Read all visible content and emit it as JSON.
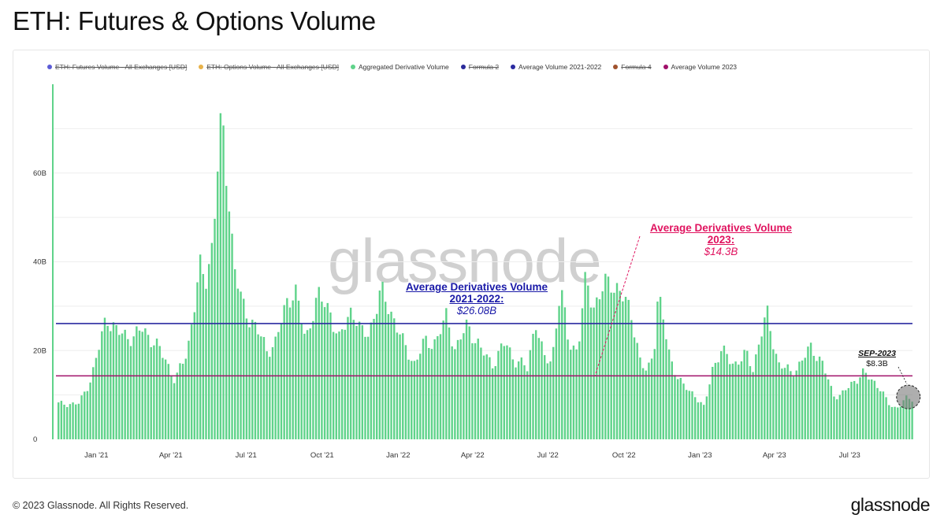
{
  "page": {
    "title": "ETH: Futures & Options Volume",
    "copyright": "© 2023 Glassnode. All Rights Reserved.",
    "brand": "glassnode",
    "watermark": "glassnode"
  },
  "legend": [
    {
      "label": "ETH: Futures Volume - All Exchanges [USD]",
      "color": "#5b5bd6",
      "hidden": true
    },
    {
      "label": "ETH: Options Volume - All Exchanges [USD]",
      "color": "#e8b24a",
      "hidden": true
    },
    {
      "label": "Aggregated Derivative Volume",
      "color": "#5fd38a",
      "hidden": false
    },
    {
      "label": "Formula 2",
      "color": "#2a2a9a",
      "hidden": true
    },
    {
      "label": "Average Volume 2021-2022",
      "color": "#2a2aa0",
      "hidden": false
    },
    {
      "label": "Formula 4",
      "color": "#a0522d",
      "hidden": true
    },
    {
      "label": "Average Volume 2023",
      "color": "#a0106a",
      "hidden": false
    }
  ],
  "annotations": {
    "avg_2122": {
      "title_line1": "Average Derivatives Volume",
      "title_line2": "2021-2022:",
      "value": "$26.08B"
    },
    "avg_2023": {
      "title_line1": "Average Derivatives Volume",
      "title_line2": "2023:",
      "value": "$14.3B"
    },
    "sep_2023": {
      "title": "SEP-2023",
      "value": "$8.3B"
    }
  },
  "chart_data": {
    "type": "bar",
    "ylim": [
      0,
      80
    ],
    "y_unit": "B USD",
    "y_ticks": [
      {
        "v": 0,
        "label": "0"
      },
      {
        "v": 20,
        "label": "20B"
      },
      {
        "v": 40,
        "label": "40B"
      },
      {
        "v": 60,
        "label": "60B"
      }
    ],
    "x_ticks": [
      "Jan '21",
      "Apr '21",
      "Jul '21",
      "Oct '21",
      "Jan '22",
      "Apr '22",
      "Jul '22",
      "Oct '22",
      "Jan '23",
      "Apr '23",
      "Jul '23"
    ],
    "x_start": "2020-11-15",
    "x_end": "2023-09-15",
    "grid": true,
    "series": [
      {
        "name": "Aggregated Derivative Volume",
        "color": "#5fd38a",
        "granularity": "weekly",
        "keypoints": [
          [
            "2020-11-15",
            8
          ],
          [
            "2020-12-10",
            8
          ],
          [
            "2020-12-25",
            14
          ],
          [
            "2021-01-05",
            22
          ],
          [
            "2021-01-12",
            28
          ],
          [
            "2021-01-25",
            24
          ],
          [
            "2021-02-15",
            23
          ],
          [
            "2021-02-25",
            25
          ],
          [
            "2021-03-10",
            22
          ],
          [
            "2021-03-25",
            18
          ],
          [
            "2021-04-05",
            13
          ],
          [
            "2021-04-20",
            20
          ],
          [
            "2021-04-28",
            30
          ],
          [
            "2021-05-05",
            38
          ],
          [
            "2021-05-12",
            36
          ],
          [
            "2021-05-20",
            44
          ],
          [
            "2021-05-28",
            65
          ],
          [
            "2021-06-01",
            70
          ],
          [
            "2021-06-08",
            58
          ],
          [
            "2021-06-15",
            40
          ],
          [
            "2021-06-25",
            30
          ],
          [
            "2021-07-10",
            26
          ],
          [
            "2021-07-25",
            20
          ],
          [
            "2021-08-05",
            22
          ],
          [
            "2021-08-20",
            32
          ],
          [
            "2021-08-28",
            34
          ],
          [
            "2021-09-10",
            22
          ],
          [
            "2021-09-20",
            30
          ],
          [
            "2021-09-25",
            32
          ],
          [
            "2021-10-10",
            29
          ],
          [
            "2021-10-20",
            22
          ],
          [
            "2021-11-05",
            30
          ],
          [
            "2021-11-15",
            24
          ],
          [
            "2021-11-25",
            24
          ],
          [
            "2021-12-10",
            33
          ],
          [
            "2021-12-20",
            30
          ],
          [
            "2022-01-05",
            22
          ],
          [
            "2022-01-20",
            17
          ],
          [
            "2022-02-01",
            22
          ],
          [
            "2022-02-15",
            22
          ],
          [
            "2022-02-28",
            28
          ],
          [
            "2022-03-10",
            20
          ],
          [
            "2022-03-25",
            26
          ],
          [
            "2022-04-10",
            20
          ],
          [
            "2022-04-25",
            17
          ],
          [
            "2022-05-10",
            22
          ],
          [
            "2022-05-20",
            18
          ],
          [
            "2022-06-05",
            16
          ],
          [
            "2022-06-15",
            27
          ],
          [
            "2022-06-25",
            18
          ],
          [
            "2022-07-05",
            18
          ],
          [
            "2022-07-15",
            34
          ],
          [
            "2022-07-25",
            22
          ],
          [
            "2022-08-05",
            20
          ],
          [
            "2022-08-15",
            36
          ],
          [
            "2022-08-25",
            30
          ],
          [
            "2022-09-05",
            34
          ],
          [
            "2022-09-15",
            36
          ],
          [
            "2022-09-25",
            33
          ],
          [
            "2022-10-10",
            28
          ],
          [
            "2022-10-20",
            17
          ],
          [
            "2022-10-28",
            15
          ],
          [
            "2022-11-05",
            20
          ],
          [
            "2022-11-10",
            33
          ],
          [
            "2022-11-15",
            28
          ],
          [
            "2022-11-25",
            18
          ],
          [
            "2022-12-10",
            12
          ],
          [
            "2022-12-25",
            10
          ],
          [
            "2023-01-05",
            7
          ],
          [
            "2023-01-15",
            16
          ],
          [
            "2023-01-25",
            20
          ],
          [
            "2023-02-10",
            17
          ],
          [
            "2023-02-25",
            19
          ],
          [
            "2023-03-05",
            16
          ],
          [
            "2023-03-15",
            24
          ],
          [
            "2023-03-22",
            28
          ],
          [
            "2023-04-05",
            17
          ],
          [
            "2023-04-20",
            15
          ],
          [
            "2023-05-01",
            17
          ],
          [
            "2023-05-15",
            21
          ],
          [
            "2023-05-28",
            17
          ],
          [
            "2023-06-10",
            10
          ],
          [
            "2023-06-20",
            10
          ],
          [
            "2023-07-05",
            13
          ],
          [
            "2023-07-15",
            15
          ],
          [
            "2023-07-22",
            14
          ],
          [
            "2023-08-05",
            12
          ],
          [
            "2023-08-15",
            8
          ],
          [
            "2023-08-25",
            7
          ],
          [
            "2023-09-05",
            9
          ],
          [
            "2023-09-15",
            9
          ]
        ]
      },
      {
        "name": "Average Volume 2021-2022",
        "type": "hline",
        "value": 26.08,
        "color": "#2a2aa0"
      },
      {
        "name": "Average Volume 2023",
        "type": "hline",
        "value": 14.3,
        "color": "#a0106a"
      }
    ],
    "highlight": {
      "date": "2023-09-10",
      "value": 8.3
    }
  }
}
